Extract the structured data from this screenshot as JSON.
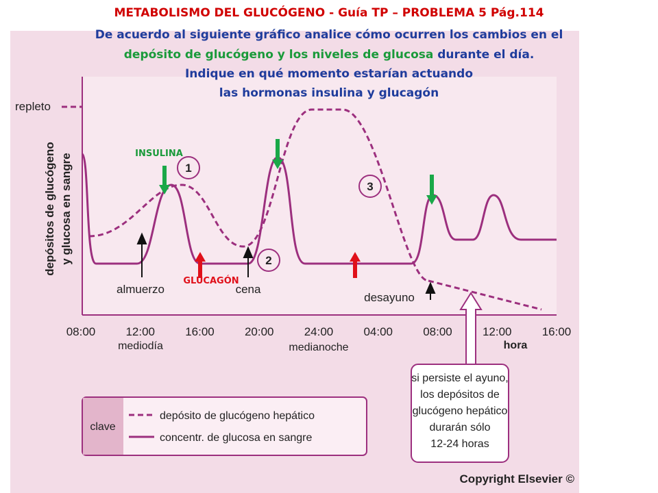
{
  "header": {
    "title": "METABOLISMO DEL GLUCÓGENO - Guía TP – PROBLEMA 5 Pág.114",
    "lines": [
      "De acuerdo al siguiente gráfico analice cómo ocurren los cambios en el",
      "depósito de glucógeno y los niveles de glucosa",
      "durante el día.",
      "Indique en qué momento estarían actuando",
      "las hormonas insulina y glucagón"
    ]
  },
  "figure": {
    "y_label": [
      "depósitos de glucógeno",
      "y glucosa en sangre"
    ],
    "top_label": "repleto",
    "x_ticks": [
      "08:00",
      "12:00",
      "16:00",
      "20:00",
      "24:00",
      "04:00",
      "08:00",
      "12:00",
      "16:00"
    ],
    "x_sublabels": [
      "mediodía",
      "medianoche"
    ],
    "x_axis_label": "hora",
    "meals": [
      "almuerzo",
      "cena",
      "desayuno"
    ],
    "markers": [
      "1",
      "2",
      "3"
    ],
    "hormones": [
      "INSULINA",
      "GLUCAGÓN"
    ],
    "callout": [
      "si persiste el ayuno,",
      "los depósitos de",
      "glucógeno hepático",
      "durarán sólo",
      "12-24 horas"
    ],
    "legend": {
      "key": "clave",
      "entries": [
        "depósito de glucógeno hepático",
        "concentr. de glucosa en sangre"
      ]
    },
    "copyright": "Copyright Elsevier ©"
  }
}
